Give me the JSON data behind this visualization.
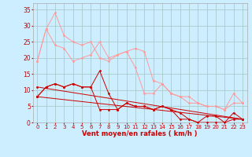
{
  "xlabel": "Vent moyen/en rafales ( km/h )",
  "bg_color": "#cceeff",
  "grid_color": "#aacccc",
  "xlim": [
    -0.5,
    23.5
  ],
  "ylim": [
    0,
    37
  ],
  "yticks": [
    0,
    5,
    10,
    15,
    20,
    25,
    30,
    35
  ],
  "xticks": [
    0,
    1,
    2,
    3,
    4,
    5,
    6,
    7,
    8,
    9,
    10,
    11,
    12,
    13,
    14,
    15,
    16,
    17,
    18,
    19,
    20,
    21,
    22,
    23
  ],
  "lines_light": [
    {
      "x": [
        0,
        1,
        2,
        3,
        4,
        5,
        6,
        7,
        8,
        9,
        10,
        11,
        12,
        13,
        14,
        15,
        16,
        17,
        18,
        19,
        20,
        21,
        22,
        23
      ],
      "y": [
        19,
        29,
        24,
        23,
        19,
        20,
        21,
        25,
        20,
        21,
        22,
        23,
        22,
        13,
        12,
        9,
        8,
        8,
        6,
        5,
        5,
        4,
        9,
        6
      ]
    },
    {
      "x": [
        0,
        1,
        2,
        3,
        4,
        5,
        6,
        7,
        8,
        9,
        10,
        11,
        12,
        13,
        14,
        15,
        16,
        17,
        18,
        19,
        20,
        21,
        22,
        23
      ],
      "y": [
        19,
        29,
        34,
        27,
        25,
        24,
        25,
        20,
        19,
        21,
        22,
        17,
        9,
        9,
        12,
        9,
        8,
        6,
        6,
        5,
        5,
        4,
        6,
        6
      ]
    }
  ],
  "lines_dark": [
    {
      "x": [
        0,
        1,
        2,
        3,
        4,
        5,
        6,
        7,
        8,
        9,
        10,
        11,
        12,
        13,
        14,
        15,
        16,
        17,
        18,
        19,
        20,
        21,
        22,
        23
      ],
      "y": [
        8,
        11,
        12,
        11,
        12,
        11,
        11,
        16,
        9,
        4,
        6,
        5,
        5,
        4,
        5,
        4,
        3,
        1,
        0,
        2,
        2,
        0,
        3,
        1
      ]
    },
    {
      "x": [
        0,
        1,
        2,
        3,
        4,
        5,
        6,
        7,
        8,
        9,
        10,
        11,
        12,
        13,
        14,
        15,
        16,
        17,
        18,
        19,
        20,
        21,
        22,
        23
      ],
      "y": [
        8,
        11,
        12,
        11,
        12,
        11,
        11,
        4,
        4,
        4,
        6,
        5,
        5,
        4,
        5,
        4,
        1,
        1,
        0,
        0,
        0,
        0,
        1,
        1
      ]
    },
    {
      "x": [
        0,
        23
      ],
      "y": [
        8,
        1
      ]
    },
    {
      "x": [
        0,
        23
      ],
      "y": [
        11,
        1
      ]
    }
  ],
  "light_color": "#ff9999",
  "dark_color": "#cc0000",
  "marker_size": 2.0
}
